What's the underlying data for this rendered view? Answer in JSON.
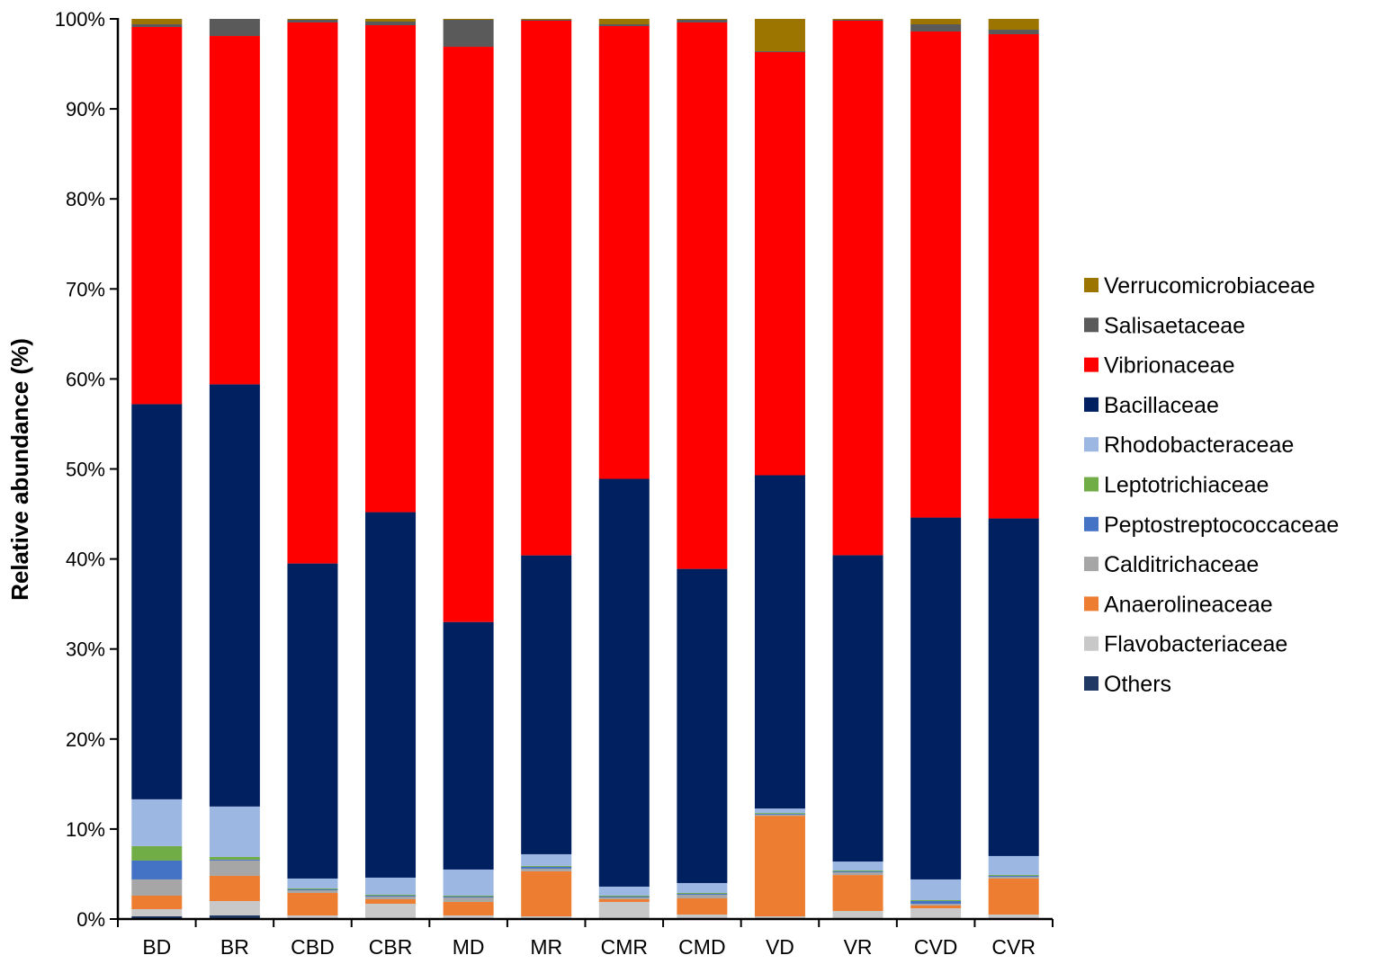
{
  "chart_data": {
    "type": "bar",
    "stacked": true,
    "title": "",
    "xlabel": "",
    "ylabel": "Relative abundance (%)",
    "ylim": [
      0,
      100
    ],
    "y_ticks": [
      "0%",
      "10%",
      "20%",
      "30%",
      "40%",
      "50%",
      "60%",
      "70%",
      "80%",
      "90%",
      "100%"
    ],
    "legend_position": "right",
    "categories": [
      "BD",
      "BR",
      "CBD",
      "CBR",
      "MD",
      "MR",
      "CMR",
      "CMD",
      "VD",
      "VR",
      "CVD",
      "CVR"
    ],
    "series": [
      {
        "name": "Others",
        "color": "#1f3864",
        "values": [
          0.3,
          0.4,
          0.1,
          0.1,
          0.1,
          0.1,
          0.1,
          0.1,
          0.1,
          0.1,
          0.1,
          0.1
        ]
      },
      {
        "name": "Flavobacteriaceae",
        "color": "#c8c8c8",
        "values": [
          0.8,
          1.6,
          0.3,
          1.6,
          0.3,
          0.2,
          1.8,
          0.4,
          0.2,
          0.8,
          1.1,
          0.4
        ]
      },
      {
        "name": "Anaerolineaceae",
        "color": "#ed7d31",
        "values": [
          1.5,
          2.8,
          2.5,
          0.5,
          1.5,
          5.0,
          0.3,
          1.8,
          11.2,
          4.0,
          0.3,
          4.0
        ]
      },
      {
        "name": "Calditrichaceae",
        "color": "#a6a6a6",
        "values": [
          1.8,
          1.7,
          0.3,
          0.3,
          0.5,
          0.3,
          0.2,
          0.4,
          0.1,
          0.3,
          0.2,
          0.2
        ]
      },
      {
        "name": "Peptostreptococcaceae",
        "color": "#4472c4",
        "values": [
          2.1,
          0.1,
          0.1,
          0.1,
          0.1,
          0.2,
          0.1,
          0.1,
          0.1,
          0.1,
          0.3,
          0.1
        ]
      },
      {
        "name": "Leptotrichiaceae",
        "color": "#70ad47",
        "values": [
          1.6,
          0.3,
          0.1,
          0.1,
          0.1,
          0.1,
          0.1,
          0.1,
          0.1,
          0.1,
          0.1,
          0.1
        ]
      },
      {
        "name": "Rhodobacteraceae",
        "color": "#9db7e3",
        "values": [
          5.2,
          5.6,
          1.1,
          1.9,
          2.9,
          1.3,
          1.0,
          1.1,
          0.5,
          1.0,
          2.3,
          2.1
        ]
      },
      {
        "name": "Bacillaceae",
        "color": "#002060",
        "values": [
          43.9,
          46.9,
          35.0,
          40.6,
          27.5,
          33.2,
          45.3,
          34.9,
          37.1,
          34.1,
          40.2,
          37.5
        ]
      },
      {
        "name": "Vibrionaceae",
        "color": "#ff0000",
        "values": [
          41.9,
          38.7,
          60.1,
          54.1,
          63.9,
          59.4,
          50.3,
          60.7,
          47.1,
          59.5,
          54.0,
          53.8
        ]
      },
      {
        "name": "Salisaetaceae",
        "color": "#5a5a5a",
        "values": [
          0.3,
          1.9,
          0.3,
          0.4,
          3.0,
          0.1,
          0.2,
          0.3,
          0.1,
          0.1,
          0.8,
          0.5
        ]
      },
      {
        "name": "Verrucomicrobiaceae",
        "color": "#9c7400",
        "values": [
          0.6,
          0.0,
          0.1,
          0.3,
          0.1,
          0.1,
          0.6,
          0.1,
          3.6,
          0.1,
          0.6,
          1.2
        ]
      }
    ]
  }
}
